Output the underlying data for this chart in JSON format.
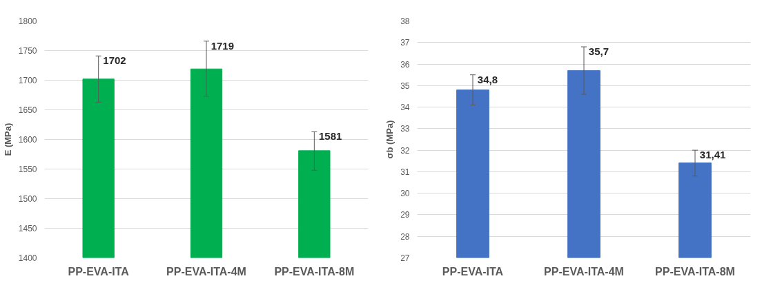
{
  "chart_data": [
    {
      "type": "bar",
      "ylabel": "E (MPa)",
      "categories": [
        "PP-EVA-ITA",
        "PP-EVA-ITA-4M",
        "PP-EVA-ITA-8M"
      ],
      "values": [
        1702,
        1719,
        1581
      ],
      "color": "#00b050",
      "errors": [
        [
          1663,
          1741
        ],
        [
          1673,
          1766
        ],
        [
          1548,
          1613
        ]
      ],
      "value_labels": [
        "1702",
        "1719",
        "1581"
      ],
      "ylim": [
        1400,
        1800
      ],
      "yticks": [
        1400,
        1450,
        1500,
        1550,
        1600,
        1650,
        1700,
        1750,
        1800
      ],
      "grid": "y"
    },
    {
      "type": "bar",
      "ylabel": "σb (MPa)",
      "categories": [
        "PP-EVA-ITA",
        "PP-EVA-ITA-4M",
        "PP-EVA-ITA-8M"
      ],
      "values": [
        34.8,
        35.7,
        31.41
      ],
      "color": "#4472c4",
      "errors": [
        [
          34.1,
          35.5
        ],
        [
          34.6,
          36.8
        ],
        [
          30.8,
          32.0
        ]
      ],
      "value_labels": [
        "34,8",
        "35,7",
        "31,41"
      ],
      "ylim": [
        27,
        38
      ],
      "yticks": [
        27,
        28,
        29,
        30,
        31,
        32,
        33,
        34,
        35,
        36,
        37,
        38
      ],
      "grid": "y"
    }
  ]
}
